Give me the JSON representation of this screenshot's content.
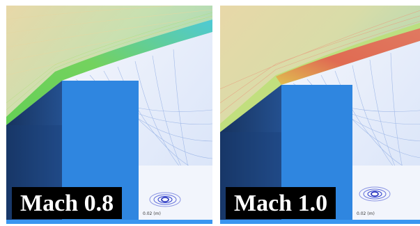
{
  "panels": [
    {
      "caption": "Mach 0.8",
      "scale_label": "0.02 (m)",
      "flow_colors": [
        "#6fd15a",
        "#b8d84a",
        "#e0c060",
        "#8fd0c0",
        "#60c8e0"
      ],
      "shock": "none"
    },
    {
      "caption": "Mach 1.0",
      "scale_label": "0.02 (m)",
      "flow_colors": [
        "#e06050",
        "#e08a60",
        "#d8b06a",
        "#90c8a0",
        "#60c8e0"
      ],
      "shock": "present"
    }
  ],
  "colors": {
    "body_dark": "#1a3f78",
    "body_light": "#2f86e0",
    "lower_block": "#3a96f0",
    "wake": "#eef2fb",
    "streamline": "#8aa8e0",
    "vortex": "#2233cc",
    "caption_bg": "#000000",
    "caption_text": "#ffffff"
  }
}
